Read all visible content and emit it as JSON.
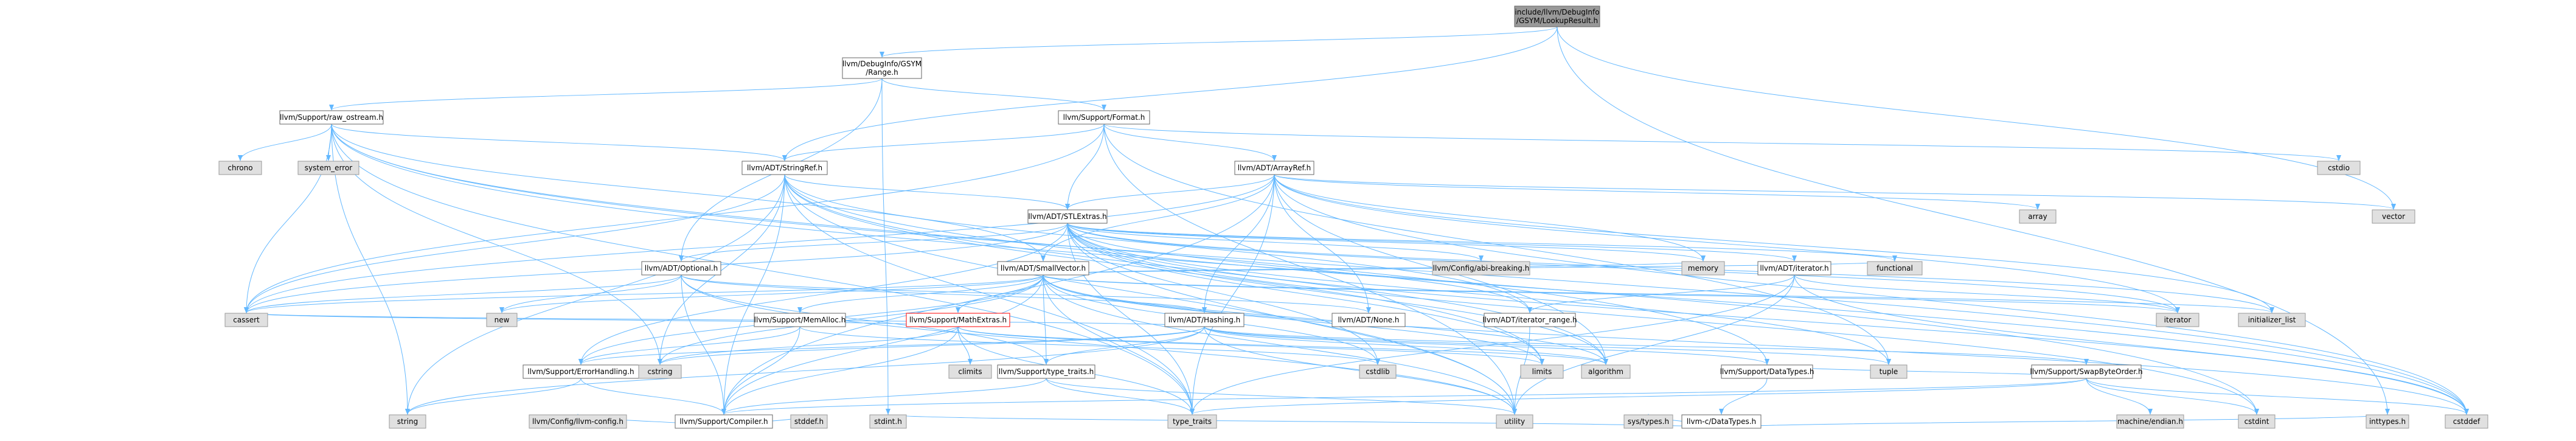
{
  "nodes": [
    {
      "id": "root",
      "lines": [
        "include/llvm/DebugInfo",
        "/GSYM/LookupResult.h"
      ],
      "kind": "root"
    },
    {
      "id": "range",
      "lines": [
        "llvm/DebugInfo/GSYM",
        "/Range.h"
      ],
      "kind": "header"
    },
    {
      "id": "raw_ostream",
      "lines": [
        "llvm/Support/raw_ostream.h"
      ],
      "kind": "header"
    },
    {
      "id": "format",
      "lines": [
        "llvm/Support/Format.h"
      ],
      "kind": "header"
    },
    {
      "id": "stringref",
      "lines": [
        "llvm/ADT/StringRef.h"
      ],
      "kind": "header"
    },
    {
      "id": "arrayref",
      "lines": [
        "llvm/ADT/ArrayRef.h"
      ],
      "kind": "header"
    },
    {
      "id": "stlextras",
      "lines": [
        "llvm/ADT/STLExtras.h"
      ],
      "kind": "header"
    },
    {
      "id": "optional",
      "lines": [
        "llvm/ADT/Optional.h"
      ],
      "kind": "header"
    },
    {
      "id": "smallvector",
      "lines": [
        "llvm/ADT/SmallVector.h"
      ],
      "kind": "header"
    },
    {
      "id": "hashing",
      "lines": [
        "llvm/ADT/Hashing.h"
      ],
      "kind": "header"
    },
    {
      "id": "iterator",
      "lines": [
        "llvm/ADT/iterator.h"
      ],
      "kind": "header"
    },
    {
      "id": "iterator_range",
      "lines": [
        "llvm/ADT/iterator_range.h"
      ],
      "kind": "header"
    },
    {
      "id": "none",
      "lines": [
        "llvm/ADT/None.h"
      ],
      "kind": "header"
    },
    {
      "id": "memalloc",
      "lines": [
        "llvm/Support/MemAlloc.h"
      ],
      "kind": "header"
    },
    {
      "id": "mathextras",
      "lines": [
        "llvm/Support/MathExtras.h"
      ],
      "kind": "red"
    },
    {
      "id": "errorhandling",
      "lines": [
        "llvm/Support/ErrorHandling.h"
      ],
      "kind": "header"
    },
    {
      "id": "type_traits_h",
      "lines": [
        "llvm/Support/type_traits.h"
      ],
      "kind": "header"
    },
    {
      "id": "compiler",
      "lines": [
        "llvm/Support/Compiler.h"
      ],
      "kind": "header"
    },
    {
      "id": "datatypes",
      "lines": [
        "llvm/Support/DataTypes.h"
      ],
      "kind": "header"
    },
    {
      "id": "swapbyteorder",
      "lines": [
        "llvm/Support/SwapByteOrder.h"
      ],
      "kind": "header"
    },
    {
      "id": "c_datatypes",
      "lines": [
        "llvm-c/DataTypes.h"
      ],
      "kind": "header"
    },
    {
      "id": "llvm_config",
      "lines": [
        "llvm/Config/llvm-config.h"
      ],
      "kind": "system"
    },
    {
      "id": "abi_breaking",
      "lines": [
        "llvm/Config/abi-breaking.h"
      ],
      "kind": "system"
    },
    {
      "id": "chrono",
      "lines": [
        "chrono"
      ],
      "kind": "system"
    },
    {
      "id": "system_error",
      "lines": [
        "system_error"
      ],
      "kind": "system"
    },
    {
      "id": "cstdio",
      "lines": [
        "cstdio"
      ],
      "kind": "system"
    },
    {
      "id": "vector",
      "lines": [
        "vector"
      ],
      "kind": "system"
    },
    {
      "id": "array",
      "lines": [
        "array"
      ],
      "kind": "system"
    },
    {
      "id": "functional",
      "lines": [
        "functional"
      ],
      "kind": "system"
    },
    {
      "id": "memory",
      "lines": [
        "memory"
      ],
      "kind": "system"
    },
    {
      "id": "new",
      "lines": [
        "new"
      ],
      "kind": "system"
    },
    {
      "id": "climits",
      "lines": [
        "climits"
      ],
      "kind": "system"
    },
    {
      "id": "cstdlib",
      "lines": [
        "cstdlib"
      ],
      "kind": "system"
    },
    {
      "id": "limits",
      "lines": [
        "limits"
      ],
      "kind": "system"
    },
    {
      "id": "iterator_std",
      "lines": [
        "iterator"
      ],
      "kind": "system"
    },
    {
      "id": "initializer_list",
      "lines": [
        "initializer_list"
      ],
      "kind": "system"
    },
    {
      "id": "cassert",
      "lines": [
        "cassert"
      ],
      "kind": "system"
    },
    {
      "id": "cstring",
      "lines": [
        "cstring"
      ],
      "kind": "system"
    },
    {
      "id": "algorithm",
      "lines": [
        "algorithm"
      ],
      "kind": "system"
    },
    {
      "id": "tuple",
      "lines": [
        "tuple"
      ],
      "kind": "system"
    },
    {
      "id": "string",
      "lines": [
        "string"
      ],
      "kind": "system"
    },
    {
      "id": "type_traits",
      "lines": [
        "type_traits"
      ],
      "kind": "system"
    },
    {
      "id": "utility",
      "lines": [
        "utility"
      ],
      "kind": "system"
    },
    {
      "id": "machine_endian",
      "lines": [
        "machine/endian.h"
      ],
      "kind": "system"
    },
    {
      "id": "cstdint",
      "lines": [
        "cstdint"
      ],
      "kind": "system"
    },
    {
      "id": "cstddef",
      "lines": [
        "cstddef"
      ],
      "kind": "system"
    },
    {
      "id": "stdint",
      "lines": [
        "stdint.h"
      ],
      "kind": "system"
    },
    {
      "id": "stddef",
      "lines": [
        "stddef.h"
      ],
      "kind": "system"
    },
    {
      "id": "sys_types",
      "lines": [
        "sys/types.h"
      ],
      "kind": "system"
    },
    {
      "id": "inttypes",
      "lines": [
        "inttypes.h"
      ],
      "kind": "system"
    }
  ],
  "edges": [
    [
      "root",
      "range"
    ],
    [
      "root",
      "stringref"
    ],
    [
      "root",
      "inttypes"
    ],
    [
      "root",
      "vector"
    ],
    [
      "range",
      "raw_ostream"
    ],
    [
      "range",
      "format"
    ],
    [
      "range",
      "optional"
    ],
    [
      "range",
      "stdint"
    ],
    [
      "raw_ostream",
      "stringref"
    ],
    [
      "raw_ostream",
      "smallvector"
    ],
    [
      "raw_ostream",
      "datatypes"
    ],
    [
      "raw_ostream",
      "cassert"
    ],
    [
      "raw_ostream",
      "chrono"
    ],
    [
      "raw_ostream",
      "cstddef"
    ],
    [
      "raw_ostream",
      "cstdint"
    ],
    [
      "raw_ostream",
      "cstring"
    ],
    [
      "raw_ostream",
      "string"
    ],
    [
      "raw_ostream",
      "system_error"
    ],
    [
      "raw_ostream",
      "type_traits"
    ],
    [
      "format",
      "arrayref"
    ],
    [
      "format",
      "stlextras"
    ],
    [
      "format",
      "stringref"
    ],
    [
      "format",
      "cassert"
    ],
    [
      "format",
      "cstdio"
    ],
    [
      "format",
      "tuple"
    ],
    [
      "format",
      "utility"
    ],
    [
      "stringref",
      "stlextras"
    ],
    [
      "stringref",
      "iterator_range"
    ],
    [
      "stringref",
      "compiler"
    ],
    [
      "stringref",
      "algorithm"
    ],
    [
      "stringref",
      "cassert"
    ],
    [
      "stringref",
      "cstddef"
    ],
    [
      "stringref",
      "cstring"
    ],
    [
      "stringref",
      "limits"
    ],
    [
      "stringref",
      "string"
    ],
    [
      "stringref",
      "type_traits"
    ],
    [
      "stringref",
      "utility"
    ],
    [
      "arrayref",
      "hashing"
    ],
    [
      "arrayref",
      "none"
    ],
    [
      "arrayref",
      "smallvector"
    ],
    [
      "arrayref",
      "stlextras"
    ],
    [
      "arrayref",
      "compiler"
    ],
    [
      "arrayref",
      "algorithm"
    ],
    [
      "arrayref",
      "array"
    ],
    [
      "arrayref",
      "cassert"
    ],
    [
      "arrayref",
      "cstddef"
    ],
    [
      "arrayref",
      "initializer_list"
    ],
    [
      "arrayref",
      "iterator_std"
    ],
    [
      "arrayref",
      "memory"
    ],
    [
      "arrayref",
      "type_traits"
    ],
    [
      "arrayref",
      "vector"
    ],
    [
      "stlextras",
      "optional"
    ],
    [
      "stlextras",
      "iterator"
    ],
    [
      "stlextras",
      "iterator_range"
    ],
    [
      "stlextras",
      "abi_breaking"
    ],
    [
      "stlextras",
      "errorhandling"
    ],
    [
      "stlextras",
      "algorithm"
    ],
    [
      "stlextras",
      "cassert"
    ],
    [
      "stlextras",
      "cstddef"
    ],
    [
      "stlextras",
      "cstdint"
    ],
    [
      "stlextras",
      "cstdlib"
    ],
    [
      "stlextras",
      "functional"
    ],
    [
      "stlextras",
      "initializer_list"
    ],
    [
      "stlextras",
      "iterator_std"
    ],
    [
      "stlextras",
      "limits"
    ],
    [
      "stlextras",
      "memory"
    ],
    [
      "stlextras",
      "tuple"
    ],
    [
      "stlextras",
      "type_traits"
    ],
    [
      "stlextras",
      "utility"
    ],
    [
      "optional",
      "hashing"
    ],
    [
      "optional",
      "none"
    ],
    [
      "optional",
      "compiler"
    ],
    [
      "optional",
      "type_traits_h"
    ],
    [
      "optional",
      "cassert"
    ],
    [
      "optional",
      "new"
    ],
    [
      "optional",
      "utility"
    ],
    [
      "smallvector",
      "compiler"
    ],
    [
      "smallvector",
      "errorhandling"
    ],
    [
      "smallvector",
      "mathextras"
    ],
    [
      "smallvector",
      "memalloc"
    ],
    [
      "smallvector",
      "type_traits_h"
    ],
    [
      "smallvector",
      "algorithm"
    ],
    [
      "smallvector",
      "cassert"
    ],
    [
      "smallvector",
      "cstddef"
    ],
    [
      "smallvector",
      "cstdlib"
    ],
    [
      "smallvector",
      "cstring"
    ],
    [
      "smallvector",
      "functional"
    ],
    [
      "smallvector",
      "initializer_list"
    ],
    [
      "smallvector",
      "iterator_std"
    ],
    [
      "smallvector",
      "limits"
    ],
    [
      "smallvector",
      "memory"
    ],
    [
      "smallvector",
      "new"
    ],
    [
      "smallvector",
      "type_traits"
    ],
    [
      "smallvector",
      "utility"
    ],
    [
      "hashing",
      "datatypes"
    ],
    [
      "hashing",
      "errorhandling"
    ],
    [
      "hashing",
      "swapbyteorder"
    ],
    [
      "hashing",
      "type_traits_h"
    ],
    [
      "hashing",
      "algorithm"
    ],
    [
      "hashing",
      "cassert"
    ],
    [
      "hashing",
      "cstring"
    ],
    [
      "hashing",
      "string"
    ],
    [
      "hashing",
      "tuple"
    ],
    [
      "hashing",
      "utility"
    ],
    [
      "iterator",
      "iterator_range"
    ],
    [
      "iterator",
      "cstddef"
    ],
    [
      "iterator",
      "iterator_std"
    ],
    [
      "iterator",
      "type_traits"
    ],
    [
      "iterator",
      "utility"
    ],
    [
      "iterator_range",
      "utility"
    ],
    [
      "memalloc",
      "compiler"
    ],
    [
      "memalloc",
      "errorhandling"
    ],
    [
      "memalloc",
      "cstdlib"
    ],
    [
      "mathextras",
      "compiler"
    ],
    [
      "mathextras",
      "algorithm"
    ],
    [
      "mathextras",
      "cassert"
    ],
    [
      "mathextras",
      "climits"
    ],
    [
      "mathextras",
      "cstring"
    ],
    [
      "mathextras",
      "limits"
    ],
    [
      "mathextras",
      "type_traits"
    ],
    [
      "errorhandling",
      "compiler"
    ],
    [
      "errorhandling",
      "string"
    ],
    [
      "type_traits_h",
      "compiler"
    ],
    [
      "type_traits_h",
      "type_traits"
    ],
    [
      "type_traits_h",
      "utility"
    ],
    [
      "compiler",
      "llvm_config"
    ],
    [
      "compiler",
      "stddef"
    ],
    [
      "datatypes",
      "c_datatypes"
    ],
    [
      "swapbyteorder",
      "compiler"
    ],
    [
      "swapbyteorder",
      "datatypes"
    ],
    [
      "swapbyteorder",
      "cstddef"
    ],
    [
      "swapbyteorder",
      "cstdint"
    ],
    [
      "swapbyteorder",
      "type_traits"
    ],
    [
      "swapbyteorder",
      "machine_endian"
    ],
    [
      "c_datatypes",
      "inttypes"
    ],
    [
      "c_datatypes",
      "stdint"
    ],
    [
      "c_datatypes",
      "sys_types"
    ]
  ]
}
